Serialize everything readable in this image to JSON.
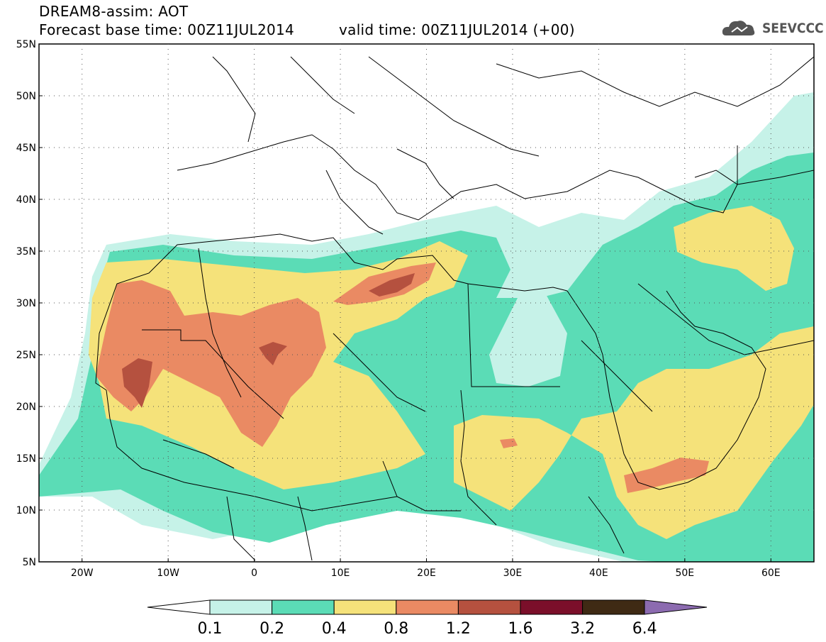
{
  "header": {
    "line1": "DREAM8-assim: AOT",
    "line2": "Forecast base time: 00Z11JUL2014",
    "valid": "valid time: 00Z11JUL2014 (+00)"
  },
  "logo": {
    "text": "SEEVCCC",
    "icon": "cloud-icon"
  },
  "map": {
    "lat_labels": [
      "55N",
      "50N",
      "45N",
      "40N",
      "35N",
      "30N",
      "25N",
      "20N",
      "15N",
      "10N",
      "5N"
    ],
    "lon_labels": [
      "20W",
      "10W",
      "0",
      "10E",
      "20E",
      "30E",
      "40E",
      "50E",
      "60E"
    ],
    "lat_range": [
      5,
      55
    ],
    "lon_range": [
      -25,
      65
    ]
  },
  "colorbar": {
    "labels": [
      "0.1",
      "0.2",
      "0.4",
      "0.8",
      "1.2",
      "1.6",
      "3.2",
      "6.4"
    ],
    "colors": [
      "#c6f2e8",
      "#5bdcb6",
      "#f5e27a",
      "#ea8a63",
      "#b5513f",
      "#7b0f2a",
      "#3f2a14",
      "#8c6bb0"
    ]
  },
  "palette": {
    "c1": "#c6f2e8",
    "c2": "#5bdcb6",
    "c3": "#f5e27a",
    "c4": "#ea8a63",
    "c5": "#b5513f"
  }
}
